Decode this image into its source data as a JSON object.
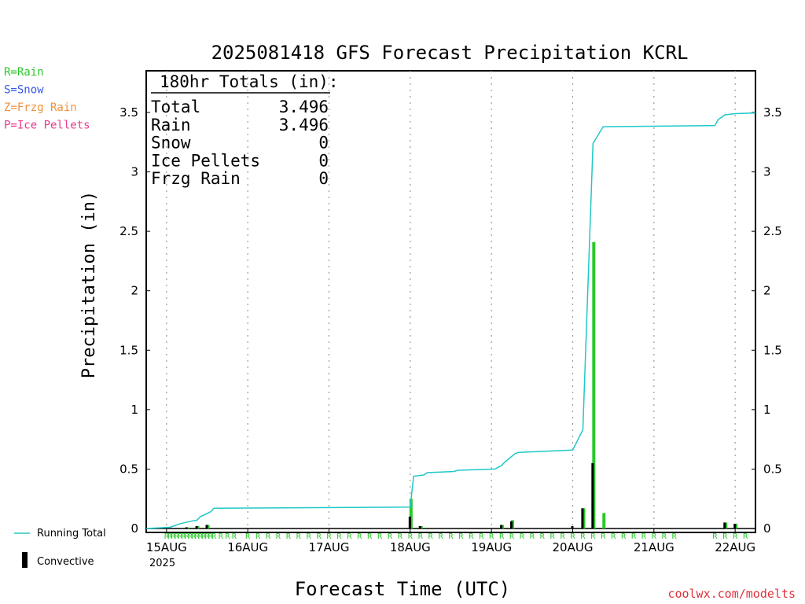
{
  "chart_data": {
    "type": "bar",
    "title": "2025081418 GFS Forecast Precipitation KCRL",
    "ylabel": "Precipitation (in)",
    "xlabel": "Forecast Time (UTC)",
    "ylim": [
      0,
      3.85
    ],
    "x_start": "2025-08-14T18:00Z",
    "x_end": "2025-08-22T06:00Z",
    "y_ticks": [
      0,
      0.5,
      1,
      1.5,
      2,
      2.5,
      3,
      3.5
    ],
    "y_tick_labels": [
      "0",
      "0.5",
      "1",
      "1.5",
      "2",
      "2.5",
      "3",
      "3.5"
    ],
    "x_tick_labels": [
      "15AUG",
      "16AUG",
      "17AUG",
      "18AUG",
      "19AUG",
      "20AUG",
      "21AUG",
      "22AUG"
    ],
    "x_tick_times": [
      "2025-08-15T00:00Z",
      "2025-08-16T00:00Z",
      "2025-08-17T00:00Z",
      "2025-08-18T00:00Z",
      "2025-08-19T00:00Z",
      "2025-08-20T00:00Z",
      "2025-08-21T00:00Z",
      "2025-08-22T00:00Z"
    ],
    "year_label": "2025",
    "grid": "dotted vertical at 00Z",
    "series": [
      {
        "name": "Running Total",
        "color": "#20c8c8",
        "kind": "step-line",
        "points": [
          [
            "2025-08-14T18:00Z",
            0.0
          ],
          [
            "2025-08-15T01:00Z",
            0.01
          ],
          [
            "2025-08-15T04:00Z",
            0.04
          ],
          [
            "2025-08-15T07:00Z",
            0.06
          ],
          [
            "2025-08-15T09:00Z",
            0.07
          ],
          [
            "2025-08-15T10:00Z",
            0.1
          ],
          [
            "2025-08-15T13:00Z",
            0.14
          ],
          [
            "2025-08-15T14:00Z",
            0.17
          ],
          [
            "2025-08-18T00:00Z",
            0.18
          ],
          [
            "2025-08-18T01:00Z",
            0.44
          ],
          [
            "2025-08-18T04:00Z",
            0.45
          ],
          [
            "2025-08-18T05:00Z",
            0.47
          ],
          [
            "2025-08-18T13:00Z",
            0.48
          ],
          [
            "2025-08-18T14:00Z",
            0.49
          ],
          [
            "2025-08-19T01:00Z",
            0.5
          ],
          [
            "2025-08-19T03:00Z",
            0.53
          ],
          [
            "2025-08-19T04:00Z",
            0.56
          ],
          [
            "2025-08-19T07:00Z",
            0.63
          ],
          [
            "2025-08-19T08:00Z",
            0.64
          ],
          [
            "2025-08-20T00:00Z",
            0.66
          ],
          [
            "2025-08-20T03:00Z",
            0.83
          ],
          [
            "2025-08-20T06:00Z",
            3.24
          ],
          [
            "2025-08-20T09:00Z",
            3.38
          ],
          [
            "2025-08-21T18:00Z",
            3.39
          ],
          [
            "2025-08-21T19:00Z",
            3.44
          ],
          [
            "2025-08-21T21:00Z",
            3.48
          ],
          [
            "2025-08-22T00:00Z",
            3.49
          ],
          [
            "2025-08-22T06:00Z",
            3.496
          ]
        ]
      },
      {
        "name": "Rain",
        "color": "#2ac82a",
        "kind": "bar",
        "bars": [
          [
            "2025-08-15T06:00Z",
            0.01
          ],
          [
            "2025-08-15T09:00Z",
            0.02
          ],
          [
            "2025-08-15T12:00Z",
            0.03
          ],
          [
            "2025-08-18T00:00Z",
            0.25
          ],
          [
            "2025-08-18T03:00Z",
            0.02
          ],
          [
            "2025-08-19T03:00Z",
            0.03
          ],
          [
            "2025-08-19T06:00Z",
            0.07
          ],
          [
            "2025-08-20T03:00Z",
            0.17
          ],
          [
            "2025-08-20T06:00Z",
            2.41
          ],
          [
            "2025-08-20T09:00Z",
            0.13
          ],
          [
            "2025-08-21T21:00Z",
            0.05
          ],
          [
            "2025-08-22T00:00Z",
            0.04
          ]
        ]
      },
      {
        "name": "Convective",
        "color": "#000000",
        "kind": "bar",
        "bars": [
          [
            "2025-08-15T06:00Z",
            0.01
          ],
          [
            "2025-08-15T09:00Z",
            0.02
          ],
          [
            "2025-08-15T12:00Z",
            0.03
          ],
          [
            "2025-08-18T00:00Z",
            0.1
          ],
          [
            "2025-08-18T03:00Z",
            0.02
          ],
          [
            "2025-08-19T03:00Z",
            0.03
          ],
          [
            "2025-08-19T06:00Z",
            0.06
          ],
          [
            "2025-08-20T00:00Z",
            0.02
          ],
          [
            "2025-08-20T03:00Z",
            0.17
          ],
          [
            "2025-08-20T06:00Z",
            0.55
          ],
          [
            "2025-08-21T21:00Z",
            0.05
          ],
          [
            "2025-08-22T00:00Z",
            0.04
          ]
        ]
      }
    ],
    "ptype_marks": {
      "label": "R",
      "color": "#2ac82a",
      "times": [
        "2025-08-15T00:00Z",
        "2025-08-15T01:00Z",
        "2025-08-15T02:00Z",
        "2025-08-15T03:00Z",
        "2025-08-15T04:00Z",
        "2025-08-15T05:00Z",
        "2025-08-15T06:00Z",
        "2025-08-15T07:00Z",
        "2025-08-15T08:00Z",
        "2025-08-15T09:00Z",
        "2025-08-15T10:00Z",
        "2025-08-15T11:00Z",
        "2025-08-15T12:00Z",
        "2025-08-15T13:00Z",
        "2025-08-15T14:00Z",
        "2025-08-15T16:00Z",
        "2025-08-15T18:00Z",
        "2025-08-15T20:00Z",
        "2025-08-16T00:00Z",
        "2025-08-16T03:00Z",
        "2025-08-16T06:00Z",
        "2025-08-16T09:00Z",
        "2025-08-16T12:00Z",
        "2025-08-16T15:00Z",
        "2025-08-16T18:00Z",
        "2025-08-16T21:00Z",
        "2025-08-17T00:00Z",
        "2025-08-17T03:00Z",
        "2025-08-17T06:00Z",
        "2025-08-17T09:00Z",
        "2025-08-17T12:00Z",
        "2025-08-17T15:00Z",
        "2025-08-17T18:00Z",
        "2025-08-17T21:00Z",
        "2025-08-18T00:00Z",
        "2025-08-18T03:00Z",
        "2025-08-18T06:00Z",
        "2025-08-18T09:00Z",
        "2025-08-18T12:00Z",
        "2025-08-18T15:00Z",
        "2025-08-18T18:00Z",
        "2025-08-18T21:00Z",
        "2025-08-19T00:00Z",
        "2025-08-19T03:00Z",
        "2025-08-19T06:00Z",
        "2025-08-19T09:00Z",
        "2025-08-19T12:00Z",
        "2025-08-19T15:00Z",
        "2025-08-19T18:00Z",
        "2025-08-19T21:00Z",
        "2025-08-20T00:00Z",
        "2025-08-20T03:00Z",
        "2025-08-20T06:00Z",
        "2025-08-20T09:00Z",
        "2025-08-20T12:00Z",
        "2025-08-20T15:00Z",
        "2025-08-20T18:00Z",
        "2025-08-20T21:00Z",
        "2025-08-21T00:00Z",
        "2025-08-21T03:00Z",
        "2025-08-21T06:00Z",
        "2025-08-21T18:00Z",
        "2025-08-21T21:00Z",
        "2025-08-22T00:00Z",
        "2025-08-22T03:00Z"
      ]
    }
  },
  "totals_box": {
    "heading": "180hr Totals (in):",
    "rows": [
      {
        "label": "Total",
        "value": "3.496"
      },
      {
        "label": "Rain",
        "value": "3.496"
      },
      {
        "label": "Snow",
        "value": "0"
      },
      {
        "label": "Ice Pellets",
        "value": "0"
      },
      {
        "label": "Frzg Rain",
        "value": "0"
      }
    ]
  },
  "ptype_legend": [
    {
      "text": "R=Rain",
      "color": "#2ac82a"
    },
    {
      "text": "S=Snow",
      "color": "#3a5ae8"
    },
    {
      "text": "Z=Frzg Rain",
      "color": "#f0903a"
    },
    {
      "text": "P=Ice Pellets",
      "color": "#e83a8c"
    }
  ],
  "line_legend": {
    "running_total": "Running Total",
    "convective": "Convective"
  },
  "credit": "coolwx.com/modelts"
}
